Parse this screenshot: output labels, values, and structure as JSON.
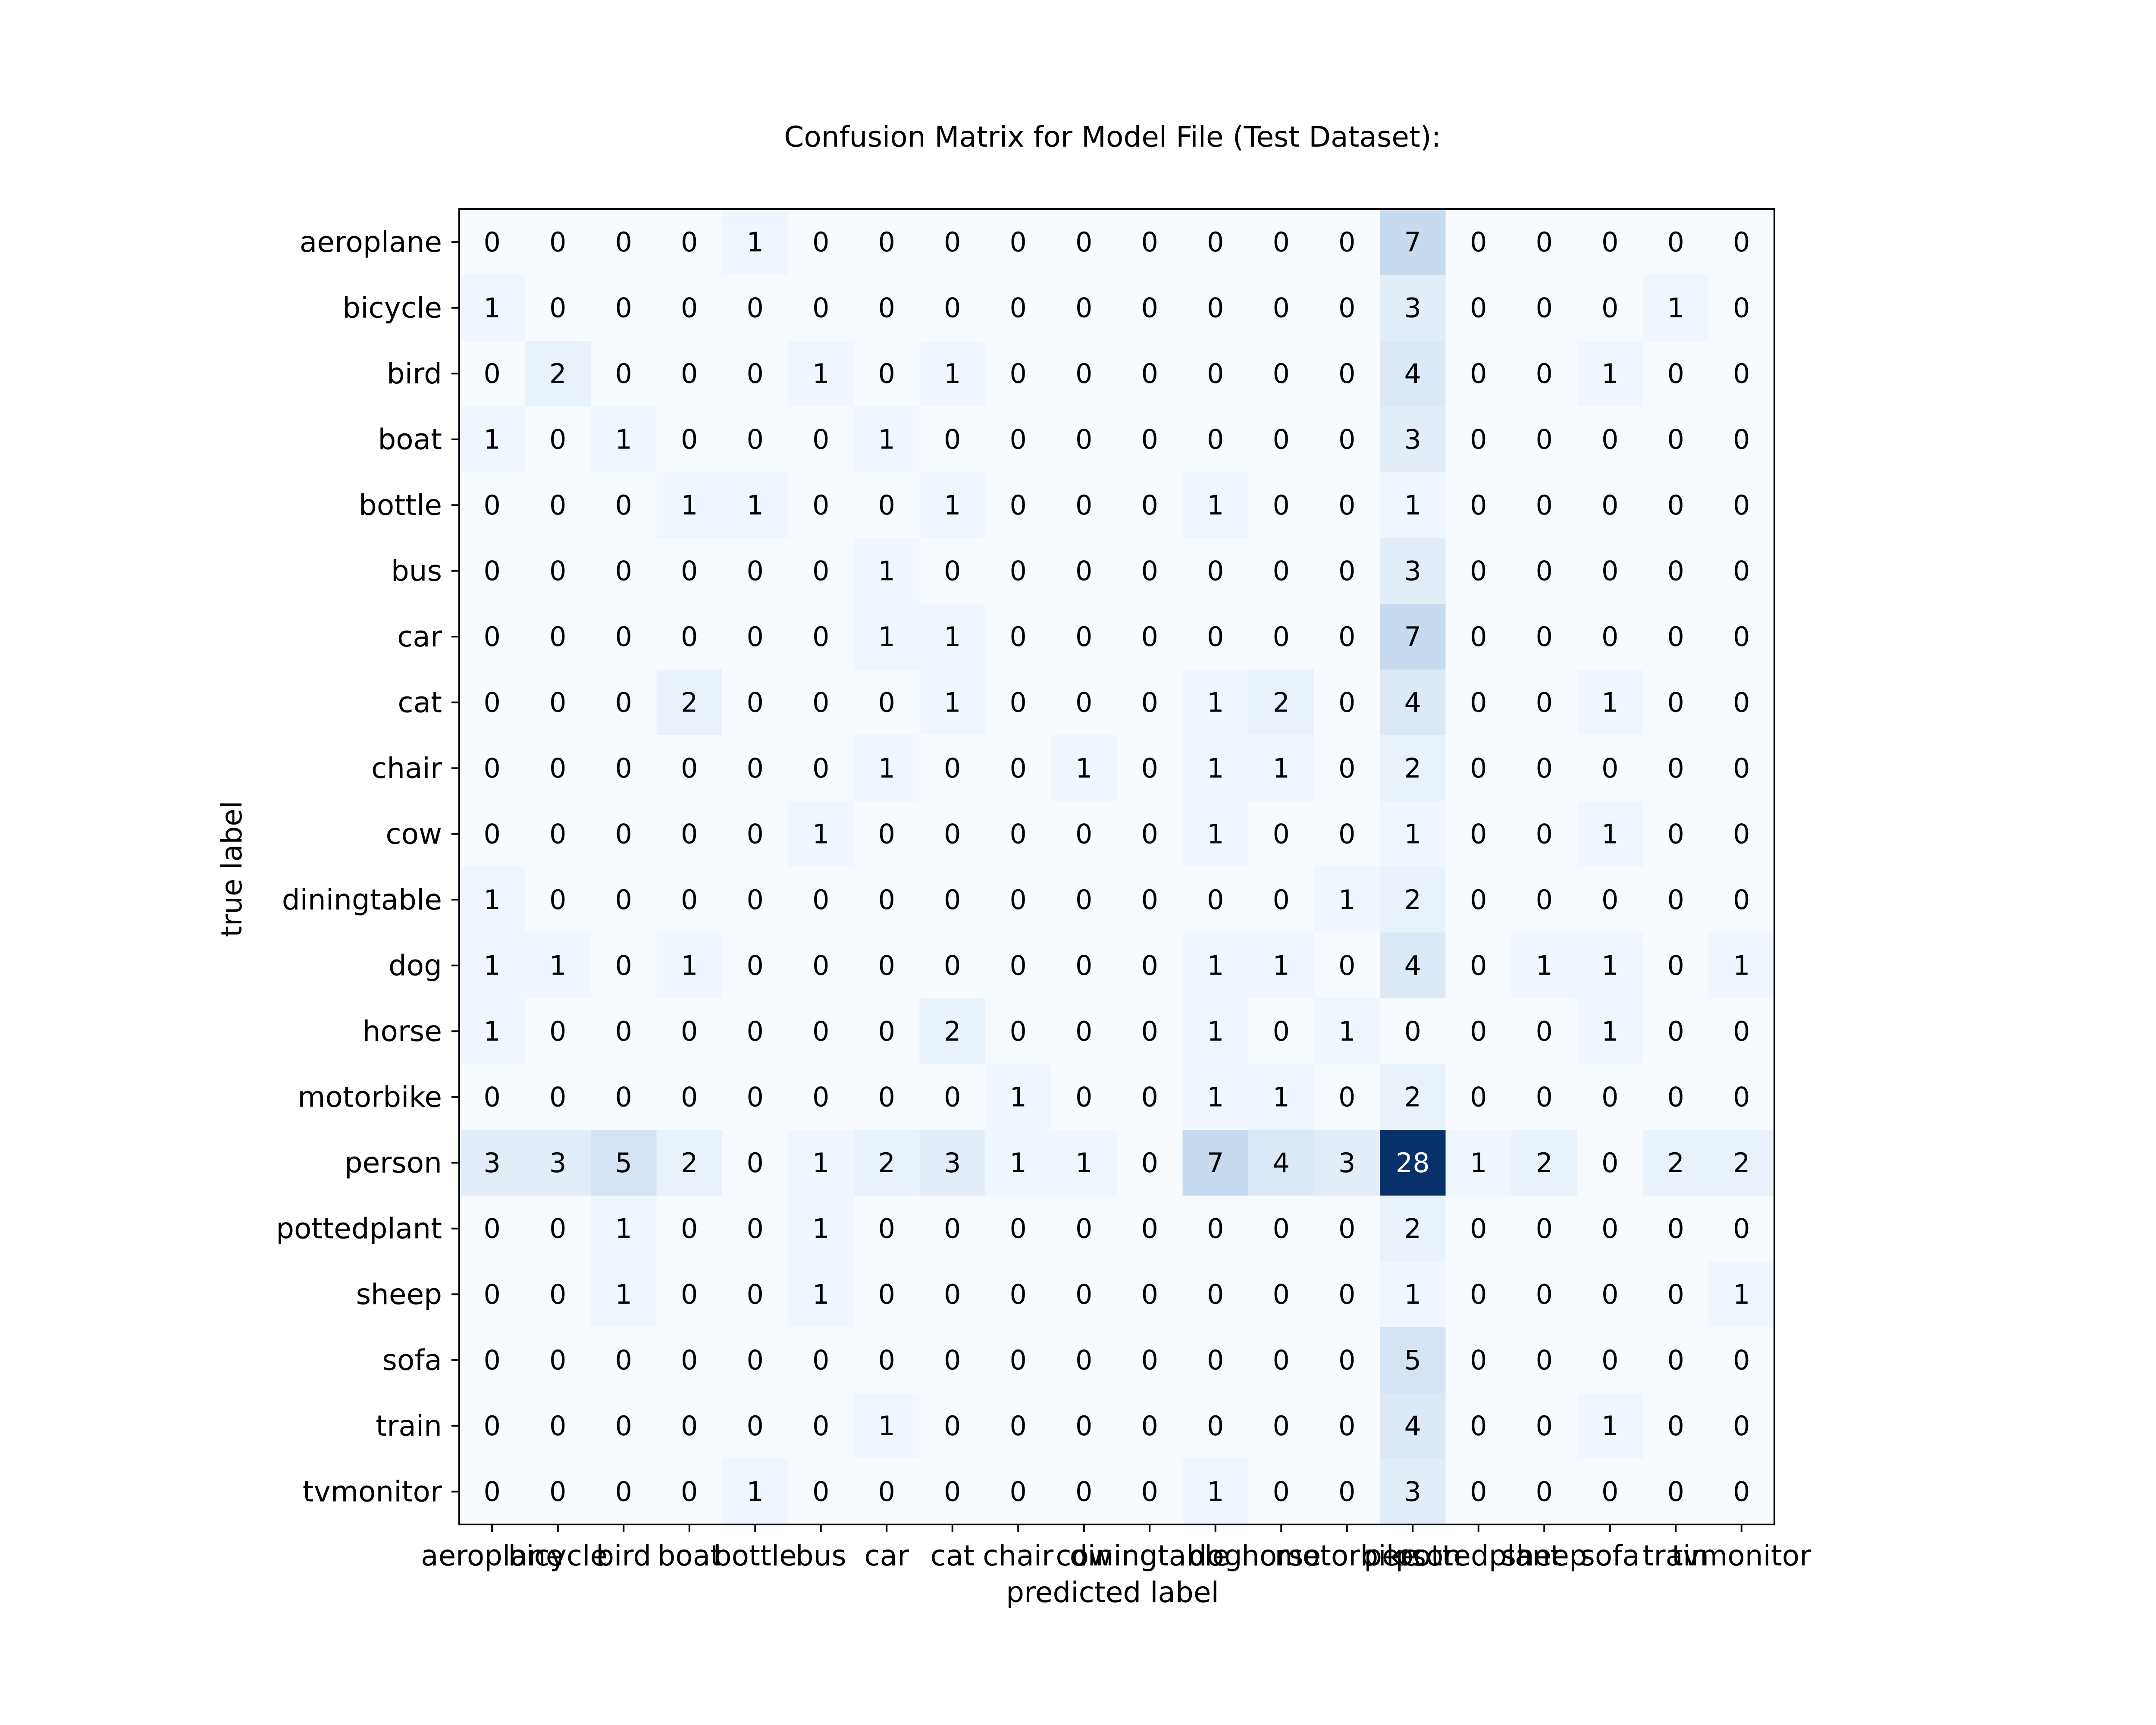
{
  "chart_data": {
    "type": "heatmap",
    "title": "Confusion Matrix for Model File (Test Dataset):",
    "xlabel": "predicted label",
    "ylabel": "true label",
    "colormap": {
      "name": "Blues",
      "low": "#f7fbff",
      "high": "#08306b"
    },
    "value_range": [
      0,
      28
    ],
    "grid": false,
    "labels": [
      "aeroplane",
      "bicycle",
      "bird",
      "boat",
      "bottle",
      "bus",
      "car",
      "cat",
      "chair",
      "cow",
      "diningtable",
      "dog",
      "horse",
      "motorbike",
      "person",
      "pottedplant",
      "sheep",
      "sofa",
      "train",
      "tvmonitor"
    ],
    "matrix": [
      [
        0,
        0,
        0,
        0,
        1,
        0,
        0,
        0,
        0,
        0,
        0,
        0,
        0,
        0,
        7,
        0,
        0,
        0,
        0,
        0
      ],
      [
        1,
        0,
        0,
        0,
        0,
        0,
        0,
        0,
        0,
        0,
        0,
        0,
        0,
        0,
        3,
        0,
        0,
        0,
        1,
        0
      ],
      [
        0,
        2,
        0,
        0,
        0,
        1,
        0,
        1,
        0,
        0,
        0,
        0,
        0,
        0,
        4,
        0,
        0,
        1,
        0,
        0
      ],
      [
        1,
        0,
        1,
        0,
        0,
        0,
        1,
        0,
        0,
        0,
        0,
        0,
        0,
        0,
        3,
        0,
        0,
        0,
        0,
        0
      ],
      [
        0,
        0,
        0,
        1,
        1,
        0,
        0,
        1,
        0,
        0,
        0,
        1,
        0,
        0,
        1,
        0,
        0,
        0,
        0,
        0
      ],
      [
        0,
        0,
        0,
        0,
        0,
        0,
        1,
        0,
        0,
        0,
        0,
        0,
        0,
        0,
        3,
        0,
        0,
        0,
        0,
        0
      ],
      [
        0,
        0,
        0,
        0,
        0,
        0,
        1,
        1,
        0,
        0,
        0,
        0,
        0,
        0,
        7,
        0,
        0,
        0,
        0,
        0
      ],
      [
        0,
        0,
        0,
        2,
        0,
        0,
        0,
        1,
        0,
        0,
        0,
        1,
        2,
        0,
        4,
        0,
        0,
        1,
        0,
        0
      ],
      [
        0,
        0,
        0,
        0,
        0,
        0,
        1,
        0,
        0,
        1,
        0,
        1,
        1,
        0,
        2,
        0,
        0,
        0,
        0,
        0
      ],
      [
        0,
        0,
        0,
        0,
        0,
        1,
        0,
        0,
        0,
        0,
        0,
        1,
        0,
        0,
        1,
        0,
        0,
        1,
        0,
        0
      ],
      [
        1,
        0,
        0,
        0,
        0,
        0,
        0,
        0,
        0,
        0,
        0,
        0,
        0,
        1,
        2,
        0,
        0,
        0,
        0,
        0
      ],
      [
        1,
        1,
        0,
        1,
        0,
        0,
        0,
        0,
        0,
        0,
        0,
        1,
        1,
        0,
        4,
        0,
        1,
        1,
        0,
        1
      ],
      [
        1,
        0,
        0,
        0,
        0,
        0,
        0,
        2,
        0,
        0,
        0,
        1,
        0,
        1,
        0,
        0,
        0,
        1,
        0,
        0
      ],
      [
        0,
        0,
        0,
        0,
        0,
        0,
        0,
        0,
        1,
        0,
        0,
        1,
        1,
        0,
        2,
        0,
        0,
        0,
        0,
        0
      ],
      [
        3,
        3,
        5,
        2,
        0,
        1,
        2,
        3,
        1,
        1,
        0,
        7,
        4,
        3,
        28,
        1,
        2,
        0,
        2,
        2
      ],
      [
        0,
        0,
        1,
        0,
        0,
        1,
        0,
        0,
        0,
        0,
        0,
        0,
        0,
        0,
        2,
        0,
        0,
        0,
        0,
        0
      ],
      [
        0,
        0,
        1,
        0,
        0,
        1,
        0,
        0,
        0,
        0,
        0,
        0,
        0,
        0,
        1,
        0,
        0,
        0,
        0,
        1
      ],
      [
        0,
        0,
        0,
        0,
        0,
        0,
        0,
        0,
        0,
        0,
        0,
        0,
        0,
        0,
        5,
        0,
        0,
        0,
        0,
        0
      ],
      [
        0,
        0,
        0,
        0,
        0,
        0,
        1,
        0,
        0,
        0,
        0,
        0,
        0,
        0,
        4,
        0,
        0,
        1,
        0,
        0
      ],
      [
        0,
        0,
        0,
        0,
        1,
        0,
        0,
        0,
        0,
        0,
        0,
        1,
        0,
        0,
        3,
        0,
        0,
        0,
        0,
        0
      ]
    ]
  }
}
